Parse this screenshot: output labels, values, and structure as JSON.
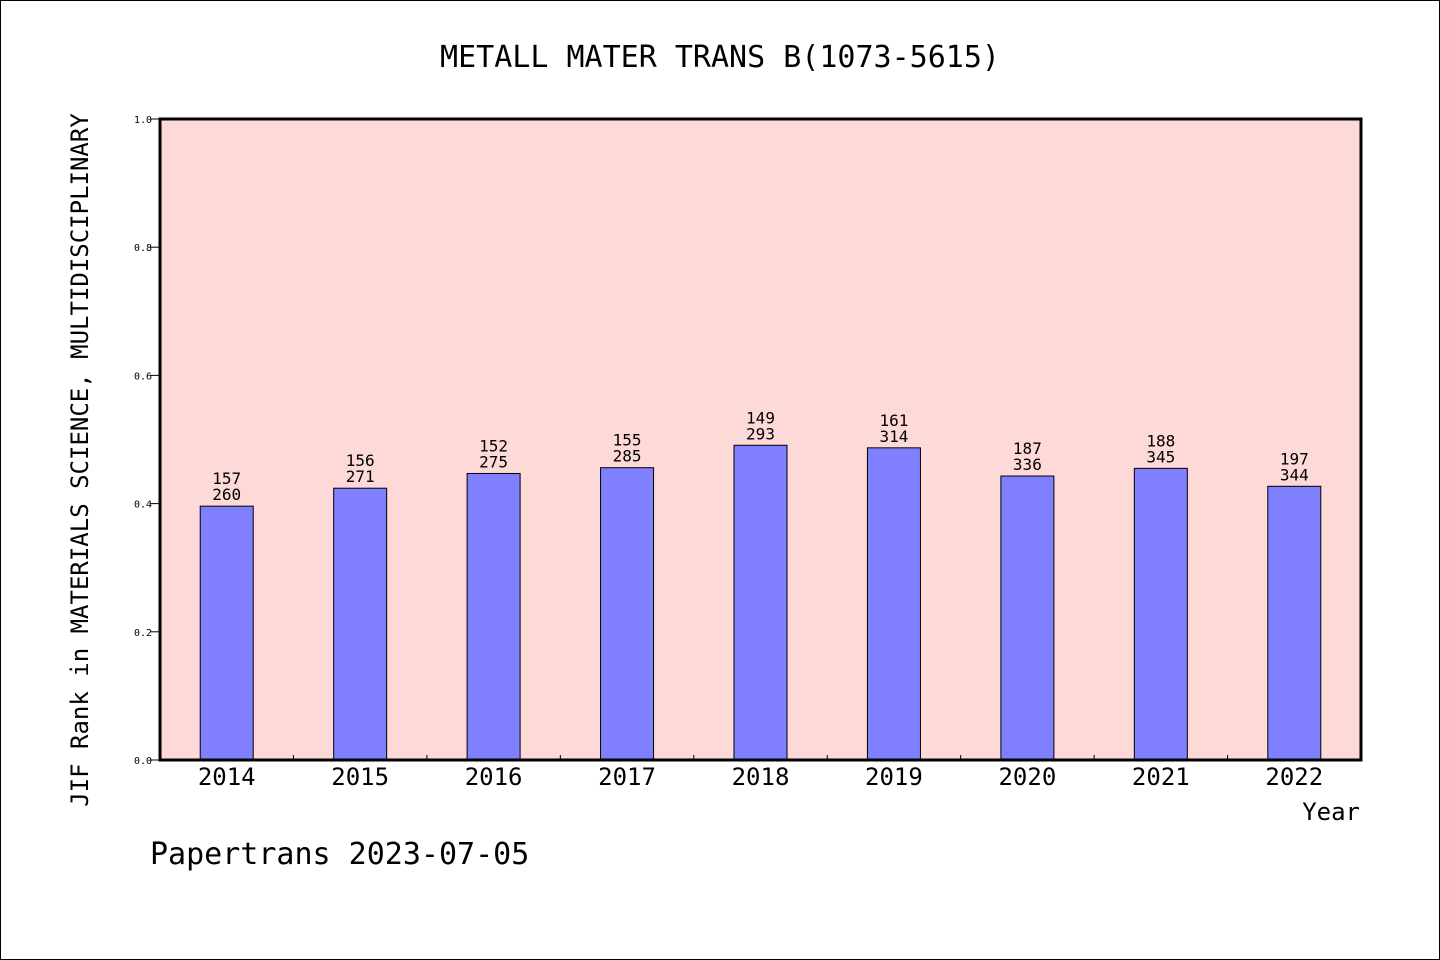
{
  "colors": {
    "plot_background": "#fdd9d7",
    "bar_fill": "#8080ff",
    "bar_stroke": "#000000"
  },
  "footer": "Papertrans 2023-07-05",
  "chart_data": {
    "type": "bar",
    "title": "METALL MATER TRANS B(1073-5615)",
    "xlabel": "Year",
    "ylabel": "JIF Rank in MATERIALS SCIENCE, MULTIDISCIPLINARY",
    "ylim": [
      0,
      1.0
    ],
    "yticks": [
      "0.0",
      "0.2",
      "0.4",
      "0.6",
      "0.8",
      "1.0"
    ],
    "grid": false,
    "categories": [
      "2014",
      "2015",
      "2016",
      "2017",
      "2018",
      "2019",
      "2020",
      "2021",
      "2022"
    ],
    "values": [
      0.396,
      0.424,
      0.447,
      0.456,
      0.491,
      0.487,
      0.443,
      0.455,
      0.427
    ],
    "labels_top": [
      "157",
      "156",
      "152",
      "155",
      "149",
      "161",
      "187",
      "188",
      "197"
    ],
    "labels_bottom": [
      "260",
      "271",
      "275",
      "285",
      "293",
      "314",
      "336",
      "345",
      "344"
    ]
  }
}
